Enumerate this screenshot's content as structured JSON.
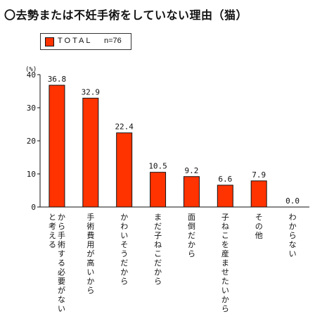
{
  "title": "〇去勢または不妊手術をしていない理由（猫）",
  "legend": {
    "name": "TOTAL",
    "n_label": "n=76",
    "color": "#ff3300"
  },
  "chart_data": {
    "type": "bar",
    "title": "〇去勢または不妊手術をしていない理由（猫）",
    "ylabel": "(%)",
    "ylim": [
      0,
      40
    ],
    "yticks": [
      0,
      10,
      20,
      30,
      40
    ],
    "categories": [
      "から手術する必要がないと考える",
      "手術費用が高いから",
      "かわいそうだから",
      "まだ子ねこだから",
      "面倒だから",
      "子ねこを産ませたいから",
      "その他",
      "わからない"
    ],
    "series": [
      {
        "name": "TOTAL",
        "values": [
          36.8,
          32.9,
          22.4,
          10.5,
          9.2,
          6.6,
          7.9,
          0.0
        ]
      }
    ],
    "value_labels": [
      "36.8",
      "32.9",
      "22.4",
      "10.5",
      "9.2",
      "6.6",
      "7.9",
      "0.0"
    ],
    "bar_color": "#ff3300",
    "grid": false,
    "legend_position": "top-left"
  }
}
